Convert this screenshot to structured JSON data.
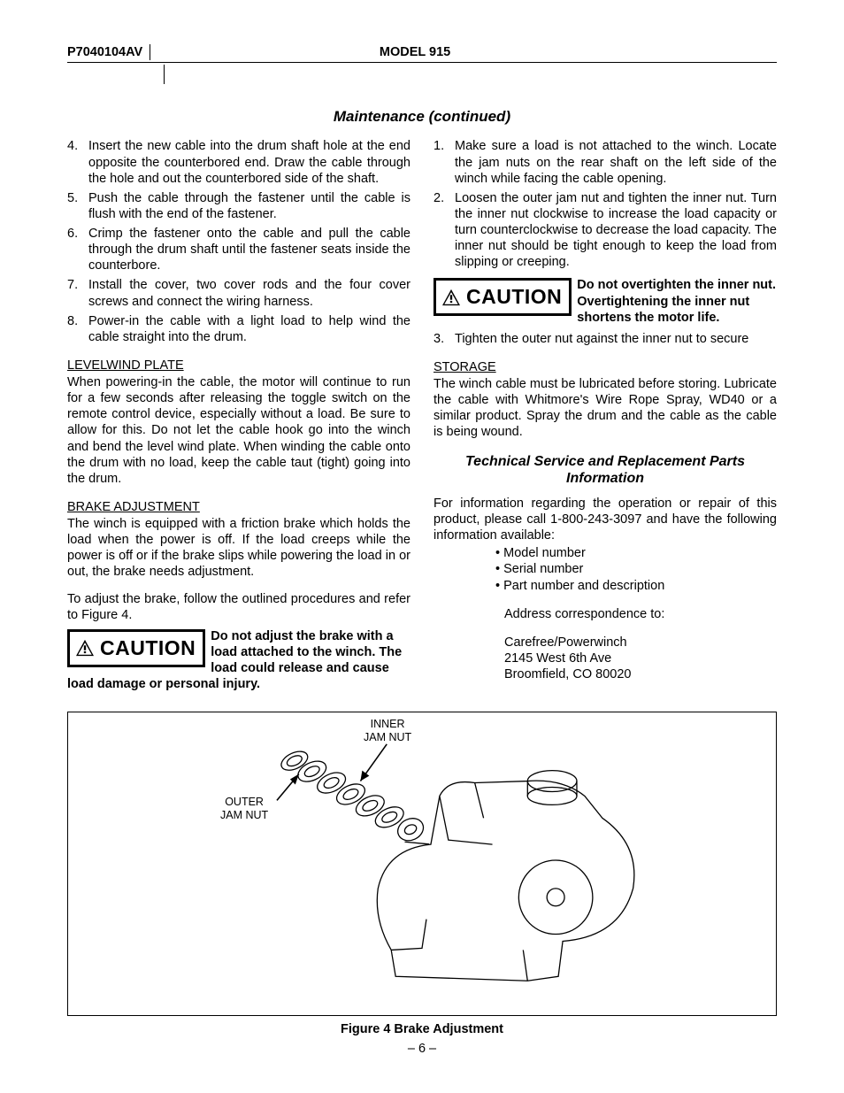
{
  "header": {
    "left": "P7040104AV",
    "center": "MODEL 915"
  },
  "title": "Maintenance (continued)",
  "left_col": {
    "steps_a": [
      "Insert the new cable into the drum shaft hole at the end opposite the counterbored end. Draw the cable through the hole and out the counterbored side of the shaft.",
      "Push the cable through the fastener until the cable is flush with the end of the fastener.",
      "Crimp the fastener onto the cable and pull the cable through the drum shaft until the fastener seats inside the counterbore.",
      "Install the cover, two cover rods and the four cover screws and connect the wiring harness.",
      "Power-in the cable with a light load to help wind the cable straight into the drum."
    ],
    "steps_a_start": 4,
    "levelwind_head": "LEVELWIND PLATE",
    "levelwind_text": "When powering-in the cable, the motor will continue to run for a few seconds after releasing the toggle switch on the remote control device, especially without a load. Be sure to allow for this. Do not let the cable hook go into the winch and bend the level wind plate. When winding the cable onto the drum with no load, keep the cable taut (tight) going into the drum.",
    "brake_head": "BRAKE ADJUSTMENT",
    "brake_text1": "The winch is equipped with a friction brake which holds the load when the power is off. If the load creeps while the power is off or if the brake slips while powering the load in or out, the brake needs adjustment.",
    "brake_text2": "To adjust the brake, follow the outlined procedures and refer to Figure 4.",
    "caution_label": "CAUTION",
    "caution_text": "Do not adjust the brake with a load attached to the winch. The load could release and cause load damage or personal injury."
  },
  "right_col": {
    "steps_b": [
      "Make sure a load is not attached to the winch. Locate the jam nuts on the rear shaft on the left side of the winch while facing the cable opening.",
      "Loosen the outer jam nut and tighten the inner nut. Turn the inner nut clockwise to increase the load capacity or turn counterclockwise to decrease the load capacity. The inner nut should be tight enough to keep the load from slipping or creeping."
    ],
    "caution_label": "CAUTION",
    "caution_text": "Do not overtighten the inner nut. Overtighten­ing the inner nut short­ens the motor life.",
    "step3": "Tighten the outer nut against the inner nut to secure",
    "storage_head": "STORAGE",
    "storage_text": "The winch cable must be lubricated before storing. Lubricate the cable with Whitmore's Wire Rope Spray, WD40 or a similar product. Spray the drum and the cable as the cable is being wound.",
    "tech_title": "Technical Service and Replacement Parts Information",
    "tech_intro": "For information regarding the operation or repair of this product, please call 1-800-243-3097 and have the following information available:",
    "bullets": [
      "Model number",
      "Serial number",
      "Part number and description"
    ],
    "addr_label": "Address correspondence to:",
    "addr": [
      "Carefree/Powerwinch",
      "2145 West 6th Ave",
      "Broomfield, CO 80020"
    ]
  },
  "figure": {
    "label_inner": "INNER\nJAM NUT",
    "label_outer": "OUTER\nJAM NUT",
    "caption": "Figure 4  Brake Adjustment"
  },
  "page_number": "– 6 –"
}
